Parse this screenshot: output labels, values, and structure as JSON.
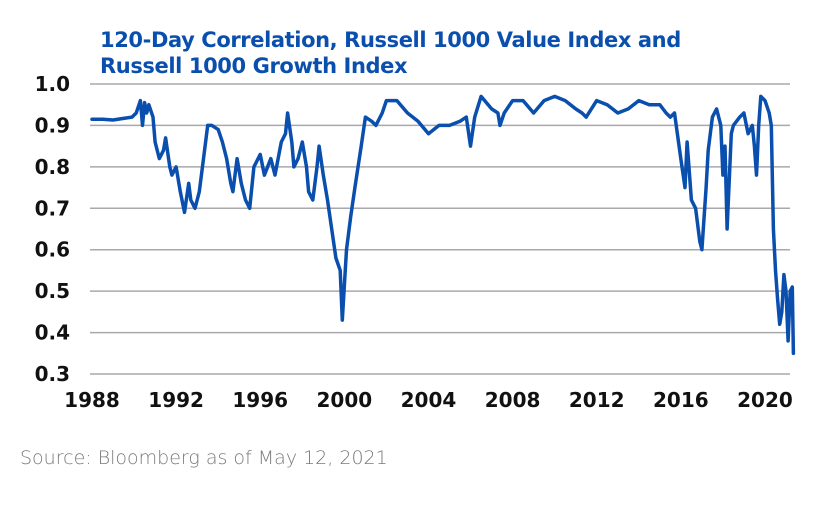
{
  "chart_data": {
    "type": "line",
    "title": "120-Day Correlation, Russell 1000 Value Index and Russell 1000 Growth Index",
    "title_lines": [
      "120-Day Correlation, Russell 1000 Value Index and",
      "Russell 1000 Growth Index"
    ],
    "xlabel": "",
    "ylabel": "",
    "xlim": [
      1988,
      2021.4
    ],
    "ylim": [
      0.3,
      1.0
    ],
    "grid": true,
    "legend": "none",
    "line_color": "#0a4fae",
    "x_ticks": [
      "1988",
      "1992",
      "1996",
      "2000",
      "2004",
      "2008",
      "2012",
      "2016",
      "2020"
    ],
    "y_ticks": [
      "1.0",
      "0.9",
      "0.8",
      "0.7",
      "0.6",
      "0.5",
      "0.4",
      "0.3"
    ],
    "series": [
      {
        "name": "120-Day Correlation",
        "x": [
          1988.0,
          1988.5,
          1989.0,
          1989.5,
          1989.9,
          1990.1,
          1990.3,
          1990.4,
          1990.5,
          1990.6,
          1990.7,
          1990.9,
          1991.0,
          1991.2,
          1991.4,
          1991.5,
          1991.7,
          1991.8,
          1992.0,
          1992.2,
          1992.4,
          1992.6,
          1992.7,
          1992.9,
          1993.1,
          1993.3,
          1993.5,
          1993.7,
          1994.0,
          1994.2,
          1994.4,
          1994.6,
          1994.7,
          1994.9,
          1995.1,
          1995.3,
          1995.5,
          1995.7,
          1996.0,
          1996.2,
          1996.5,
          1996.7,
          1997.0,
          1997.2,
          1997.3,
          1997.5,
          1997.6,
          1997.8,
          1998.0,
          1998.2,
          1998.3,
          1998.5,
          1998.7,
          1998.8,
          1999.0,
          1999.2,
          1999.4,
          1999.6,
          1999.8,
          1999.9,
          2000.1,
          2000.3,
          2000.5,
          2000.8,
          2001.0,
          2001.3,
          2001.5,
          2001.8,
          2002.0,
          2002.5,
          2003.0,
          2003.5,
          2004.0,
          2004.5,
          2005.0,
          2005.5,
          2005.8,
          2006.0,
          2006.2,
          2006.5,
          2007.0,
          2007.3,
          2007.4,
          2007.6,
          2008.0,
          2008.5,
          2009.0,
          2009.5,
          2010.0,
          2010.5,
          2011.0,
          2011.3,
          2011.5,
          2012.0,
          2012.5,
          2013.0,
          2013.5,
          2014.0,
          2014.5,
          2015.0,
          2015.3,
          2015.5,
          2015.7,
          2016.0,
          2016.2,
          2016.3,
          2016.5,
          2016.7,
          2016.9,
          2017.0,
          2017.2,
          2017.3,
          2017.5,
          2017.7,
          2017.9,
          2018.0,
          2018.1,
          2018.2,
          2018.4,
          2018.5,
          2018.8,
          2019.0,
          2019.2,
          2019.4,
          2019.5,
          2019.6,
          2019.7,
          2019.8,
          2020.0,
          2020.2,
          2020.3,
          2020.4,
          2020.5,
          2020.6,
          2020.7,
          2020.8,
          2020.9,
          2021.0,
          2021.1,
          2021.2,
          2021.3,
          2021.35
        ],
        "y": [
          0.915,
          0.915,
          0.913,
          0.917,
          0.92,
          0.93,
          0.96,
          0.9,
          0.955,
          0.93,
          0.95,
          0.92,
          0.86,
          0.82,
          0.84,
          0.87,
          0.8,
          0.78,
          0.8,
          0.74,
          0.69,
          0.76,
          0.72,
          0.7,
          0.74,
          0.82,
          0.9,
          0.9,
          0.89,
          0.86,
          0.82,
          0.76,
          0.74,
          0.82,
          0.76,
          0.72,
          0.7,
          0.8,
          0.83,
          0.78,
          0.82,
          0.78,
          0.86,
          0.88,
          0.93,
          0.86,
          0.8,
          0.82,
          0.86,
          0.8,
          0.74,
          0.72,
          0.8,
          0.85,
          0.78,
          0.72,
          0.65,
          0.58,
          0.55,
          0.43,
          0.6,
          0.68,
          0.75,
          0.85,
          0.92,
          0.91,
          0.9,
          0.93,
          0.96,
          0.96,
          0.93,
          0.91,
          0.88,
          0.9,
          0.9,
          0.91,
          0.92,
          0.85,
          0.92,
          0.97,
          0.94,
          0.93,
          0.9,
          0.93,
          0.96,
          0.96,
          0.93,
          0.96,
          0.97,
          0.96,
          0.94,
          0.93,
          0.92,
          0.96,
          0.95,
          0.93,
          0.94,
          0.96,
          0.95,
          0.95,
          0.93,
          0.92,
          0.93,
          0.82,
          0.75,
          0.86,
          0.72,
          0.7,
          0.62,
          0.6,
          0.75,
          0.84,
          0.92,
          0.94,
          0.9,
          0.78,
          0.85,
          0.65,
          0.88,
          0.9,
          0.92,
          0.93,
          0.88,
          0.9,
          0.85,
          0.78,
          0.9,
          0.97,
          0.96,
          0.93,
          0.9,
          0.65,
          0.55,
          0.48,
          0.42,
          0.45,
          0.54,
          0.5,
          0.38,
          0.5,
          0.51,
          0.35
        ]
      }
    ]
  },
  "source": "Source: Bloomberg as of May 12, 2021"
}
